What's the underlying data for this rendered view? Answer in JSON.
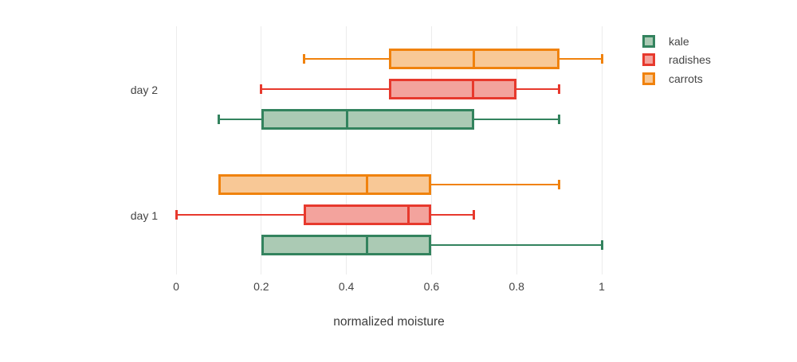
{
  "chart_data": {
    "type": "box",
    "orientation": "horizontal",
    "title": "",
    "xlabel": "normalized moisture",
    "xlim": [
      0,
      1
    ],
    "xticks": [
      0,
      0.2,
      0.4,
      0.6,
      0.8,
      1
    ],
    "xtick_labels": [
      "0",
      "0.2",
      "0.4",
      "0.6",
      "0.8",
      "1"
    ],
    "groups": [
      "day 2",
      "day 1"
    ],
    "grid": true,
    "legend_position": "outside-top-right",
    "legend": [
      "kale",
      "radishes",
      "carrots"
    ],
    "colors": {
      "background": "#ffffff",
      "gridline": "#ececec",
      "text": "#444444"
    },
    "series": [
      {
        "name": "kale",
        "line_color": "#33835e",
        "fill_color": "#abcab4",
        "boxes": [
          {
            "group": "day 2",
            "min": 0.1,
            "q1": 0.2,
            "median": 0.4,
            "q3": 0.7,
            "max": 0.9
          },
          {
            "group": "day 1",
            "min": 0.2,
            "q1": 0.2,
            "median": 0.45,
            "q3": 0.6,
            "max": 1.0
          }
        ]
      },
      {
        "name": "radishes",
        "line_color": "#e7392d",
        "fill_color": "#f3a39d",
        "boxes": [
          {
            "group": "day 2",
            "min": 0.2,
            "q1": 0.5,
            "median": 0.7,
            "q3": 0.8,
            "max": 0.9
          },
          {
            "group": "day 1",
            "min": 0.0,
            "q1": 0.3,
            "median": 0.55,
            "q3": 0.6,
            "max": 0.7
          }
        ]
      },
      {
        "name": "carrots",
        "line_color": "#f0820d",
        "fill_color": "#f8c896",
        "boxes": [
          {
            "group": "day 2",
            "min": 0.3,
            "q1": 0.5,
            "median": 0.7,
            "q3": 0.9,
            "max": 1.0
          },
          {
            "group": "day 1",
            "min": 0.1,
            "q1": 0.1,
            "median": 0.45,
            "q3": 0.6,
            "max": 0.9
          }
        ]
      }
    ]
  }
}
